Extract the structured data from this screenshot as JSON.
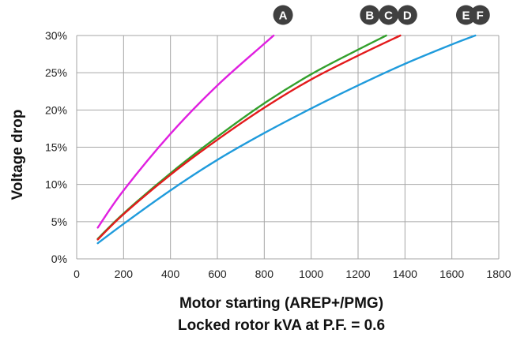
{
  "chart_data": {
    "type": "line",
    "xlabel": "Motor starting (AREP+/PMG)",
    "xlabel2": "Locked rotor kVA at P.F. = 0.6",
    "ylabel": "Voltage drop",
    "xlim": [
      0,
      1800
    ],
    "ylim": [
      0,
      30
    ],
    "x_ticks": [
      "0",
      "200",
      "400",
      "600",
      "800",
      "1000",
      "1200",
      "1400",
      "1600",
      "1800"
    ],
    "y_ticks": [
      "0%",
      "5%",
      "10%",
      "15%",
      "20%",
      "25%",
      "30%"
    ],
    "grid": true,
    "series": [
      {
        "name": "A",
        "color": "#e020e0",
        "x": [
          90,
          200,
          400,
          600,
          800,
          840
        ],
        "y": [
          4.2,
          9.2,
          16.8,
          23.3,
          28.9,
          30
        ]
      },
      {
        "name": "B",
        "color": "#33a02c",
        "x": [
          90,
          200,
          400,
          600,
          800,
          1000,
          1200,
          1320
        ],
        "y": [
          2.7,
          6.1,
          11.5,
          16.4,
          20.9,
          24.8,
          28.1,
          30
        ]
      },
      {
        "name": "C",
        "color": "#e31a1c",
        "x": [
          90,
          200,
          400,
          600,
          800,
          1000,
          1200,
          1380
        ],
        "y": [
          2.6,
          6.0,
          11.3,
          16.0,
          20.3,
          24.1,
          27.3,
          30
        ]
      },
      {
        "name": "D",
        "color": "#e31a1c",
        "x": [],
        "y": []
      },
      {
        "name": "E",
        "color": "#1f9bdc",
        "x": [
          90,
          200,
          400,
          600,
          800,
          1000,
          1200,
          1400,
          1600,
          1700
        ],
        "y": [
          2.1,
          4.7,
          9.2,
          13.3,
          16.9,
          20.2,
          23.3,
          26.2,
          28.8,
          30
        ]
      },
      {
        "name": "F",
        "color": "#1f9bdc",
        "x": [],
        "y": []
      }
    ],
    "markers": [
      {
        "label": "A",
        "x": 880
      },
      {
        "label": "B",
        "x": 1250
      },
      {
        "label": "C",
        "x": 1330
      },
      {
        "label": "D",
        "x": 1410
      },
      {
        "label": "E",
        "x": 1660
      },
      {
        "label": "F",
        "x": 1720
      }
    ]
  }
}
